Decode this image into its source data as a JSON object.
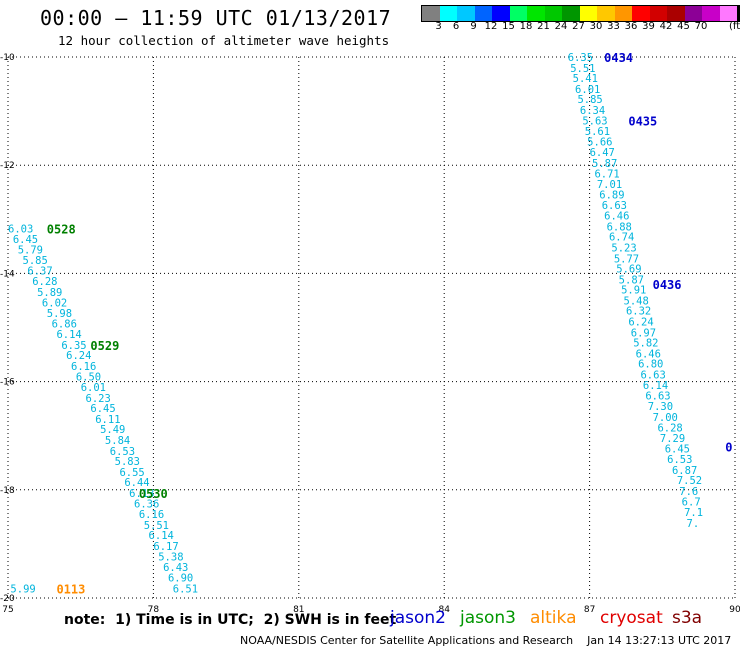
{
  "header": {
    "title": "00:00 – 11:59 UTC 01/13/2017",
    "subtitle": "12 hour collection of altimeter wave heights"
  },
  "color_legend": {
    "unit": "(ft)",
    "colors": [
      "#808080",
      "#00ffff",
      "#00c8ff",
      "#0064ff",
      "#0000ff",
      "#00ff64",
      "#00e600",
      "#00c800",
      "#009600",
      "#ffff00",
      "#ffc800",
      "#ff9600",
      "#ff0000",
      "#d20000",
      "#aa0000",
      "#8c0096",
      "#c800c8",
      "#ff78ff",
      "#000000"
    ],
    "labels": [
      "3",
      "6",
      "9",
      "12",
      "15",
      "18",
      "21",
      "24",
      "27",
      "30",
      "33",
      "36",
      "39",
      "42",
      "45",
      "70"
    ]
  },
  "chart_data": {
    "type": "scatter",
    "title": "00:00 – 11:59 UTC 01/13/2017",
    "subtitle": "12 hour collection of altimeter wave heights",
    "xlim": [
      75,
      90
    ],
    "ylim": [
      -20,
      -10
    ],
    "x_ticks": [
      "75",
      "78",
      "81",
      "84",
      "87",
      "90"
    ],
    "y_ticks": [
      "-10",
      "-12",
      "-14",
      "-16",
      "-18",
      "-20"
    ],
    "grid": true,
    "tracks": [
      {
        "satellite": "jason3",
        "label_color": "#008000",
        "value_color": "#00b4dc",
        "points": [
          {
            "x": 75.0,
            "y": -13.17,
            "v": "6.03"
          },
          {
            "x": 75.1,
            "y": -13.36,
            "v": "6.45"
          },
          {
            "x": 75.2,
            "y": -13.56,
            "v": "5.79"
          },
          {
            "x": 75.3,
            "y": -13.75,
            "v": "5.85"
          },
          {
            "x": 75.4,
            "y": -13.95,
            "v": "6.37"
          },
          {
            "x": 75.5,
            "y": -14.14,
            "v": "6.28"
          },
          {
            "x": 75.6,
            "y": -14.34,
            "v": "5.89"
          },
          {
            "x": 75.7,
            "y": -14.54,
            "v": "6.02"
          },
          {
            "x": 75.8,
            "y": -14.73,
            "v": "5.98"
          },
          {
            "x": 75.9,
            "y": -14.93,
            "v": "6.86"
          },
          {
            "x": 76.0,
            "y": -15.12,
            "v": "6.14"
          },
          {
            "x": 76.1,
            "y": -15.32,
            "v": "6.35"
          },
          {
            "x": 76.2,
            "y": -15.51,
            "v": "6.24"
          },
          {
            "x": 76.3,
            "y": -15.71,
            "v": "6.16"
          },
          {
            "x": 76.4,
            "y": -15.91,
            "v": "6.50"
          },
          {
            "x": 76.5,
            "y": -16.1,
            "v": "6.01"
          },
          {
            "x": 76.6,
            "y": -16.3,
            "v": "6.23"
          },
          {
            "x": 76.7,
            "y": -16.49,
            "v": "6.45"
          },
          {
            "x": 76.8,
            "y": -16.69,
            "v": "6.11"
          },
          {
            "x": 76.9,
            "y": -16.88,
            "v": "5.49"
          },
          {
            "x": 77.0,
            "y": -17.08,
            "v": "5.84"
          },
          {
            "x": 77.1,
            "y": -17.28,
            "v": "6.53"
          },
          {
            "x": 77.2,
            "y": -17.47,
            "v": "5.83"
          },
          {
            "x": 77.3,
            "y": -17.67,
            "v": "6.55"
          },
          {
            "x": 77.4,
            "y": -17.86,
            "v": "6.44"
          },
          {
            "x": 77.5,
            "y": -18.06,
            "v": "6.13"
          },
          {
            "x": 77.6,
            "y": -18.25,
            "v": "6.36"
          },
          {
            "x": 77.7,
            "y": -18.45,
            "v": "6.16"
          },
          {
            "x": 77.8,
            "y": -18.65,
            "v": "5.51"
          },
          {
            "x": 77.9,
            "y": -18.84,
            "v": "6.14"
          },
          {
            "x": 78.0,
            "y": -19.04,
            "v": "6.17"
          },
          {
            "x": 78.1,
            "y": -19.23,
            "v": "5.38"
          },
          {
            "x": 78.2,
            "y": -19.43,
            "v": "6.43"
          },
          {
            "x": 78.3,
            "y": -19.62,
            "v": "6.90"
          },
          {
            "x": 78.4,
            "y": -19.82,
            "v": "6.51"
          }
        ],
        "time_labels": [
          {
            "x": 75.8,
            "y": -13.17,
            "text": "0528"
          },
          {
            "x": 76.7,
            "y": -15.32,
            "text": "0529"
          },
          {
            "x": 77.7,
            "y": -18.06,
            "text": "0530"
          }
        ]
      },
      {
        "satellite": "jason2",
        "label_color": "#0000cc",
        "value_color": "#00b4dc",
        "points": [
          {
            "x": 86.55,
            "y": -10.0,
            "v": "6.35"
          },
          {
            "x": 86.6,
            "y": -10.2,
            "v": "5.51"
          },
          {
            "x": 86.65,
            "y": -10.39,
            "v": "5.41"
          },
          {
            "x": 86.7,
            "y": -10.59,
            "v": "6.01"
          },
          {
            "x": 86.75,
            "y": -10.78,
            "v": "5.85"
          },
          {
            "x": 86.8,
            "y": -10.98,
            "v": "6.34"
          },
          {
            "x": 86.85,
            "y": -11.17,
            "v": "5.63"
          },
          {
            "x": 86.9,
            "y": -11.37,
            "v": "5.61"
          },
          {
            "x": 86.95,
            "y": -11.56,
            "v": "5.66"
          },
          {
            "x": 87.0,
            "y": -11.76,
            "v": "6.47"
          },
          {
            "x": 87.05,
            "y": -11.96,
            "v": "5.87"
          },
          {
            "x": 87.1,
            "y": -12.15,
            "v": "6.71"
          },
          {
            "x": 87.15,
            "y": -12.35,
            "v": "7.01"
          },
          {
            "x": 87.2,
            "y": -12.54,
            "v": "6.89"
          },
          {
            "x": 87.25,
            "y": -12.74,
            "v": "6.63"
          },
          {
            "x": 87.3,
            "y": -12.93,
            "v": "6.46"
          },
          {
            "x": 87.35,
            "y": -13.13,
            "v": "6.88"
          },
          {
            "x": 87.4,
            "y": -13.32,
            "v": "6.74"
          },
          {
            "x": 87.45,
            "y": -13.52,
            "v": "5.23"
          },
          {
            "x": 87.5,
            "y": -13.72,
            "v": "5.77"
          },
          {
            "x": 87.55,
            "y": -13.91,
            "v": "5.69"
          },
          {
            "x": 87.6,
            "y": -14.11,
            "v": "5.87"
          },
          {
            "x": 87.65,
            "y": -14.3,
            "v": "5.91"
          },
          {
            "x": 87.7,
            "y": -14.5,
            "v": "5.48"
          },
          {
            "x": 87.75,
            "y": -14.69,
            "v": "6.32"
          },
          {
            "x": 87.8,
            "y": -14.89,
            "v": "6.24"
          },
          {
            "x": 87.85,
            "y": -15.09,
            "v": "6.97"
          },
          {
            "x": 87.9,
            "y": -15.28,
            "v": "5.82"
          },
          {
            "x": 87.95,
            "y": -15.48,
            "v": "6.46"
          },
          {
            "x": 88.0,
            "y": -15.67,
            "v": "6.80"
          },
          {
            "x": 88.05,
            "y": -15.87,
            "v": "6.63"
          },
          {
            "x": 88.1,
            "y": -16.06,
            "v": "6.14"
          },
          {
            "x": 88.15,
            "y": -16.26,
            "v": "6.63"
          },
          {
            "x": 88.2,
            "y": -16.45,
            "v": "7.30"
          },
          {
            "x": 88.3,
            "y": -16.65,
            "v": "7.00"
          },
          {
            "x": 88.4,
            "y": -16.85,
            "v": "6.28"
          },
          {
            "x": 88.45,
            "y": -17.04,
            "v": "7.29"
          },
          {
            "x": 88.55,
            "y": -17.24,
            "v": "6.45"
          },
          {
            "x": 88.6,
            "y": -17.43,
            "v": "6.53"
          },
          {
            "x": 88.7,
            "y": -17.63,
            "v": "6.87"
          },
          {
            "x": 88.8,
            "y": -17.82,
            "v": "7.52"
          },
          {
            "x": 88.85,
            "y": -18.02,
            "v": "7.6"
          },
          {
            "x": 88.9,
            "y": -18.22,
            "v": "6.7"
          },
          {
            "x": 88.95,
            "y": -18.41,
            "v": "7.1"
          },
          {
            "x": 89.0,
            "y": -18.61,
            "v": "7."
          }
        ],
        "time_labels": [
          {
            "x": 87.3,
            "y": -10.0,
            "text": "0434"
          },
          {
            "x": 87.8,
            "y": -11.17,
            "text": "0435"
          },
          {
            "x": 88.3,
            "y": -14.2,
            "text": "0436"
          },
          {
            "x": 89.8,
            "y": -17.2,
            "text": "0"
          }
        ]
      },
      {
        "satellite": "altika",
        "label_color": "#ff8c00",
        "value_color": "#00b4dc",
        "points": [
          {
            "x": 75.05,
            "y": -19.82,
            "v": "5.99"
          }
        ],
        "time_labels": [
          {
            "x": 76.0,
            "y": -19.82,
            "text": "0113"
          }
        ]
      }
    ]
  },
  "footer": {
    "note": "note:  1) Time is in UTC;  2) SWH is in feet",
    "satellites": [
      {
        "name": "jason2",
        "color": "#0000cc"
      },
      {
        "name": "jason3",
        "color": "#009600"
      },
      {
        "name": "altika",
        "color": "#ff8c00"
      },
      {
        "name": "cryosat",
        "color": "#e00000"
      },
      {
        "name": "s3a",
        "color": "#800000"
      }
    ],
    "credit": "NOAA/NESDIS Center for Satellite Applications and Research    Jan 14 13:27:13 UTC 2017"
  }
}
